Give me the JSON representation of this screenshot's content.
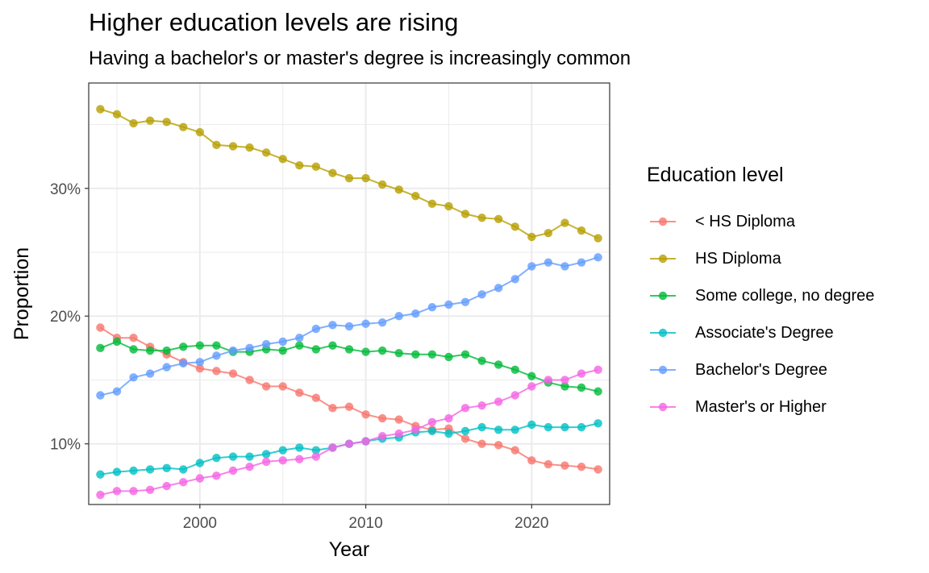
{
  "title": "Higher education levels are rising",
  "subtitle": "Having a bachelor's or master's degree is increasingly common",
  "chart_data": {
    "type": "line",
    "xlabel": "Year",
    "ylabel": "Proportion",
    "xlim": [
      1993.3,
      2024.7
    ],
    "ylim": [
      0.0525,
      0.3825
    ],
    "x_ticks": [
      2000,
      2010,
      2020
    ],
    "x_tick_labels": [
      "2000",
      "2010",
      "2020"
    ],
    "y_ticks": [
      0.1,
      0.2,
      0.3
    ],
    "y_tick_labels": [
      "10%",
      "20%",
      "30%"
    ],
    "y_minor_ticks": [
      0.15,
      0.25,
      0.35
    ],
    "grid": true,
    "legend_title": "Education level",
    "legend_position": "right",
    "x": [
      1994,
      1995,
      1996,
      1997,
      1998,
      1999,
      2000,
      2001,
      2002,
      2003,
      2004,
      2005,
      2006,
      2007,
      2008,
      2009,
      2010,
      2011,
      2012,
      2013,
      2014,
      2015,
      2016,
      2017,
      2018,
      2019,
      2020,
      2021,
      2022,
      2023,
      2024
    ],
    "series": [
      {
        "name": "< HS Diploma",
        "color": "#F8766D",
        "values": [
          0.191,
          0.183,
          0.183,
          0.176,
          0.17,
          0.164,
          0.159,
          0.157,
          0.155,
          0.15,
          0.145,
          0.145,
          0.14,
          0.136,
          0.128,
          0.129,
          0.123,
          0.12,
          0.119,
          0.114,
          0.111,
          0.112,
          0.104,
          0.1,
          0.099,
          0.095,
          0.087,
          0.084,
          0.083,
          0.082,
          0.08
        ]
      },
      {
        "name": "HS Diploma",
        "color": "#B79F00",
        "values": [
          0.362,
          0.358,
          0.351,
          0.353,
          0.352,
          0.348,
          0.344,
          0.334,
          0.333,
          0.332,
          0.328,
          0.323,
          0.318,
          0.317,
          0.312,
          0.308,
          0.308,
          0.303,
          0.299,
          0.294,
          0.288,
          0.286,
          0.28,
          0.277,
          0.276,
          0.27,
          0.262,
          0.265,
          0.273,
          0.267,
          0.261
        ]
      },
      {
        "name": "Some college, no degree",
        "color": "#00BA38",
        "values": [
          0.175,
          0.18,
          0.174,
          0.173,
          0.173,
          0.176,
          0.177,
          0.177,
          0.172,
          0.172,
          0.174,
          0.173,
          0.177,
          0.174,
          0.177,
          0.174,
          0.172,
          0.173,
          0.171,
          0.17,
          0.17,
          0.168,
          0.17,
          0.165,
          0.162,
          0.158,
          0.153,
          0.148,
          0.145,
          0.144,
          0.141
        ]
      },
      {
        "name": "Associate's Degree",
        "color": "#00BFC4",
        "values": [
          0.076,
          0.078,
          0.079,
          0.08,
          0.081,
          0.08,
          0.085,
          0.089,
          0.09,
          0.09,
          0.092,
          0.095,
          0.097,
          0.095,
          0.097,
          0.1,
          0.102,
          0.104,
          0.105,
          0.109,
          0.11,
          0.108,
          0.11,
          0.113,
          0.111,
          0.111,
          0.115,
          0.113,
          0.113,
          0.113,
          0.116
        ]
      },
      {
        "name": "Bachelor's Degree",
        "color": "#619CFF",
        "values": [
          0.138,
          0.141,
          0.152,
          0.155,
          0.16,
          0.163,
          0.164,
          0.169,
          0.173,
          0.175,
          0.178,
          0.18,
          0.183,
          0.19,
          0.193,
          0.192,
          0.194,
          0.195,
          0.2,
          0.202,
          0.207,
          0.209,
          0.211,
          0.217,
          0.222,
          0.229,
          0.239,
          0.242,
          0.239,
          0.242,
          0.246
        ]
      },
      {
        "name": "Master's or Higher",
        "color": "#F564E3",
        "values": [
          0.06,
          0.063,
          0.063,
          0.064,
          0.067,
          0.07,
          0.073,
          0.075,
          0.079,
          0.082,
          0.086,
          0.087,
          0.088,
          0.09,
          0.097,
          0.1,
          0.102,
          0.106,
          0.108,
          0.111,
          0.117,
          0.12,
          0.128,
          0.13,
          0.133,
          0.138,
          0.145,
          0.15,
          0.15,
          0.155,
          0.158
        ]
      }
    ]
  }
}
